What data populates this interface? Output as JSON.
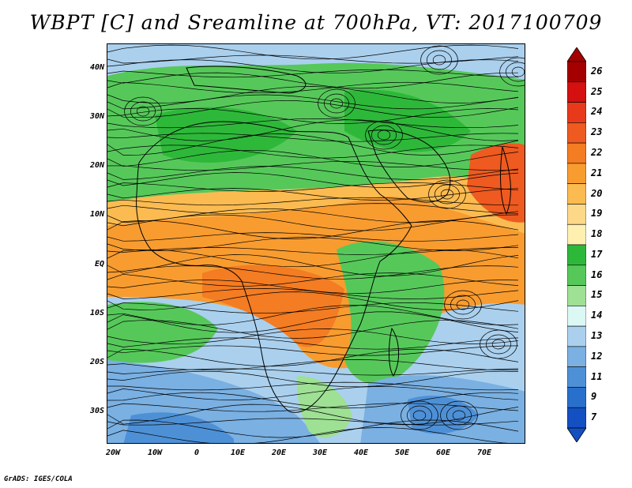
{
  "title": "WBPT [C] and Sreamline at 700hPa, VT: 2017100709",
  "credit": "GrADS: IGES/COLA",
  "lat_labels": [
    "40N",
    "30N",
    "20N",
    "10N",
    "EQ",
    "10S",
    "20S",
    "30S"
  ],
  "lon_labels": [
    "20W",
    "10W",
    "0",
    "10E",
    "20E",
    "30E",
    "40E",
    "50E",
    "60E",
    "70E"
  ],
  "colorbar": {
    "labels": [
      "26",
      "25",
      "24",
      "23",
      "22",
      "21",
      "20",
      "19",
      "18",
      "17",
      "16",
      "15",
      "14",
      "13",
      "12",
      "11",
      "9",
      "7"
    ],
    "colors": [
      "#a50000",
      "#d41010",
      "#e83a1a",
      "#ee5a20",
      "#f47c22",
      "#f89c30",
      "#fbbb50",
      "#fcd888",
      "#fff0b0",
      "#2eb83a",
      "#56c85a",
      "#9ee094",
      "#dcf8f4",
      "#aad0ee",
      "#7ab0e2",
      "#4e90d6",
      "#2870cc",
      "#1450c2"
    ]
  },
  "regions": {
    "cool_north": "#aad0ee",
    "green": "#56c85a",
    "green_dark": "#2eb83a",
    "light_green": "#9ee094",
    "warm_band": "#f89c30",
    "warm_light": "#fbbb50",
    "hot_spot": "#ee5a20",
    "cool_south": "#7ab0e2",
    "cool_south_dark": "#4e90d6"
  }
}
